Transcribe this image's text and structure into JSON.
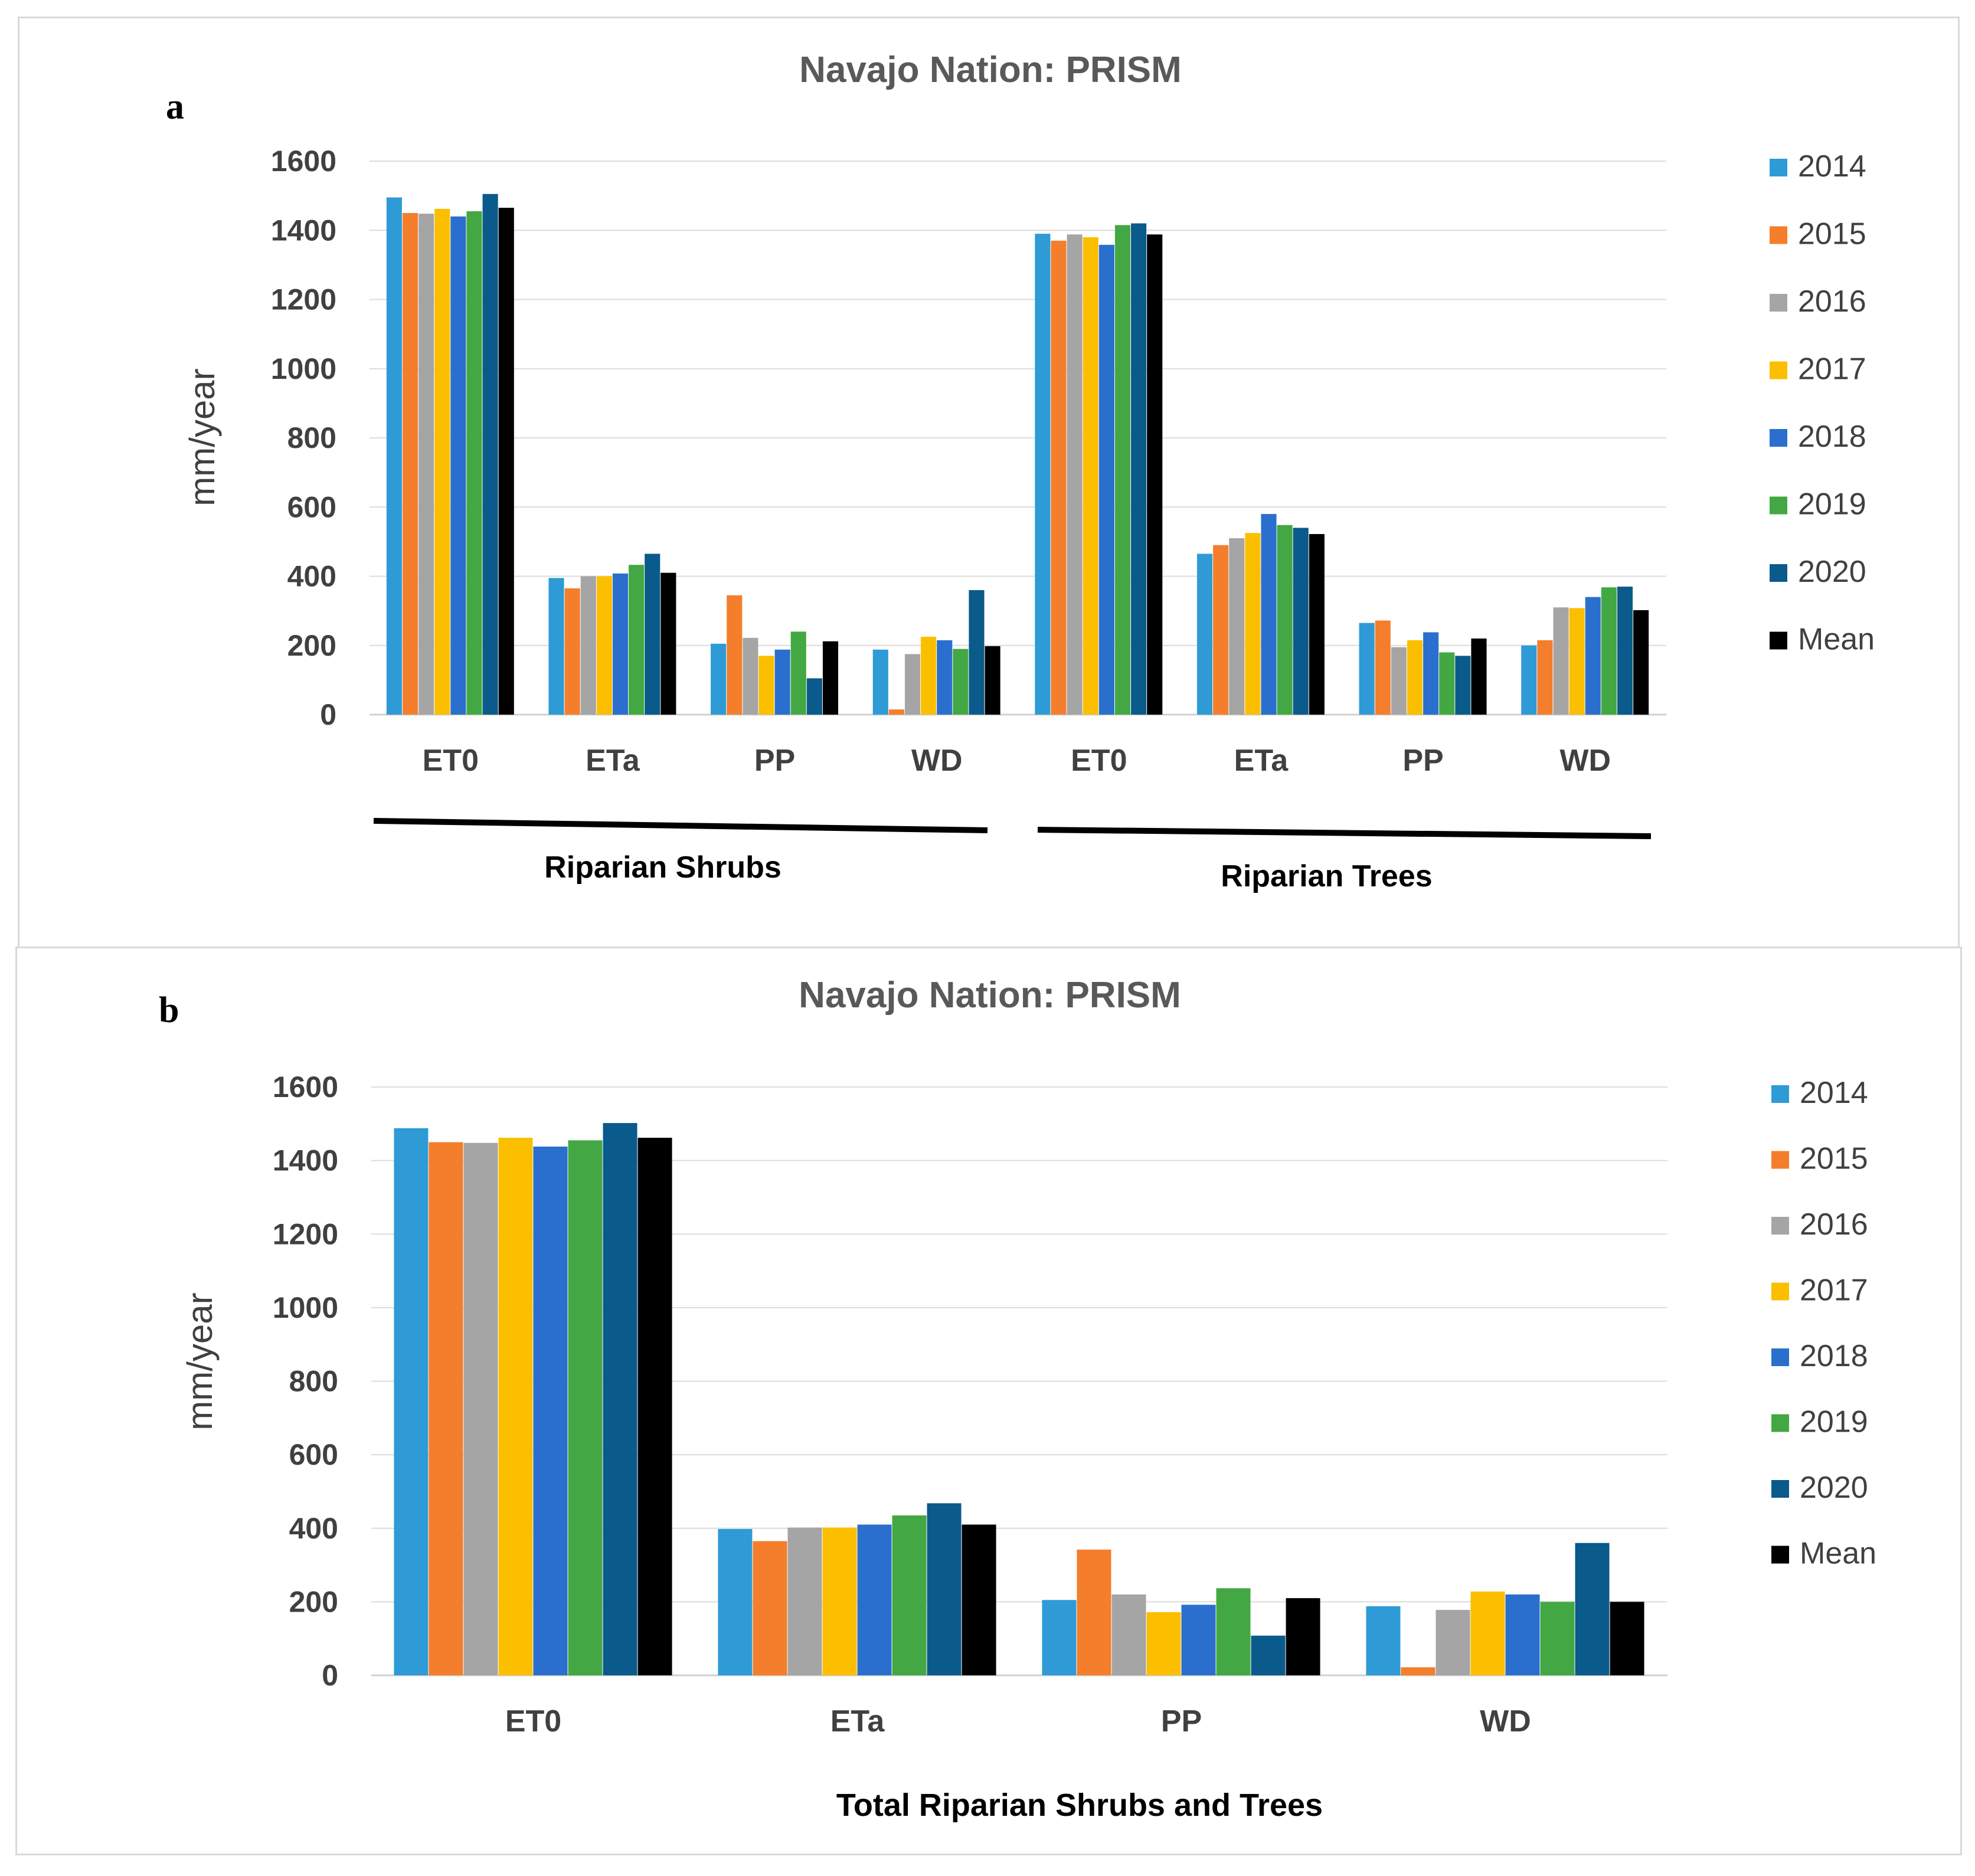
{
  "chart_data": [
    {
      "panel": "a",
      "type": "bar",
      "title": "Navajo Nation: PRISM",
      "ylabel": "mm/year",
      "xlabel": "",
      "ylim": [
        0,
        1600
      ],
      "yticks": [
        0,
        200,
        400,
        600,
        800,
        1000,
        1200,
        1400,
        1600
      ],
      "grid": true,
      "legend": "right",
      "categories": [
        "ET0",
        "ETa",
        "PP",
        "WD",
        "ET0",
        "ETa",
        "PP",
        "WD"
      ],
      "groups": [
        {
          "label": "Riparian Shrubs",
          "categories": [
            0,
            1,
            2,
            3
          ]
        },
        {
          "label": "Riparian Trees",
          "categories": [
            4,
            5,
            6,
            7
          ]
        }
      ],
      "series": [
        {
          "name": "2014",
          "color": "#2e9bd6",
          "values": [
            1495,
            395,
            205,
            188,
            1390,
            465,
            265,
            200
          ]
        },
        {
          "name": "2015",
          "color": "#f47e2c",
          "values": [
            1450,
            365,
            345,
            15,
            1370,
            490,
            272,
            215
          ]
        },
        {
          "name": "2016",
          "color": "#a5a5a5",
          "values": [
            1448,
            400,
            222,
            175,
            1388,
            510,
            195,
            310
          ]
        },
        {
          "name": "2017",
          "color": "#fbbf00",
          "values": [
            1462,
            400,
            170,
            225,
            1380,
            525,
            215,
            308
          ]
        },
        {
          "name": "2018",
          "color": "#2a6fcd",
          "values": [
            1440,
            408,
            188,
            215,
            1358,
            580,
            238,
            340
          ]
        },
        {
          "name": "2019",
          "color": "#43a843",
          "values": [
            1455,
            433,
            240,
            190,
            1415,
            548,
            180,
            368
          ]
        },
        {
          "name": "2020",
          "color": "#0a5a8b",
          "values": [
            1505,
            465,
            105,
            360,
            1420,
            540,
            170,
            370
          ]
        },
        {
          "name": "Mean",
          "color": "#000000",
          "values": [
            1465,
            410,
            212,
            198,
            1388,
            522,
            220,
            302
          ]
        }
      ]
    },
    {
      "panel": "b",
      "type": "bar",
      "title": "Navajo Nation: PRISM",
      "ylabel": "mm/year",
      "xlabel": "Total Riparian Shrubs and Trees",
      "ylim": [
        0,
        1600
      ],
      "yticks": [
        0,
        200,
        400,
        600,
        800,
        1000,
        1200,
        1400,
        1600
      ],
      "grid": true,
      "legend": "right",
      "categories": [
        "ET0",
        "ETa",
        "PP",
        "WD"
      ],
      "series": [
        {
          "name": "2014",
          "color": "#2e9bd6",
          "values": [
            1488,
            398,
            205,
            188
          ]
        },
        {
          "name": "2015",
          "color": "#f47e2c",
          "values": [
            1450,
            365,
            342,
            22
          ]
        },
        {
          "name": "2016",
          "color": "#a5a5a5",
          "values": [
            1448,
            402,
            220,
            178
          ]
        },
        {
          "name": "2017",
          "color": "#fbbf00",
          "values": [
            1462,
            402,
            172,
            228
          ]
        },
        {
          "name": "2018",
          "color": "#2a6fcd",
          "values": [
            1438,
            410,
            192,
            220
          ]
        },
        {
          "name": "2019",
          "color": "#43a843",
          "values": [
            1455,
            435,
            237,
            200
          ]
        },
        {
          "name": "2020",
          "color": "#0a5a8b",
          "values": [
            1502,
            468,
            108,
            360
          ]
        },
        {
          "name": "Mean",
          "color": "#000000",
          "values": [
            1462,
            410,
            210,
            200
          ]
        }
      ]
    }
  ]
}
